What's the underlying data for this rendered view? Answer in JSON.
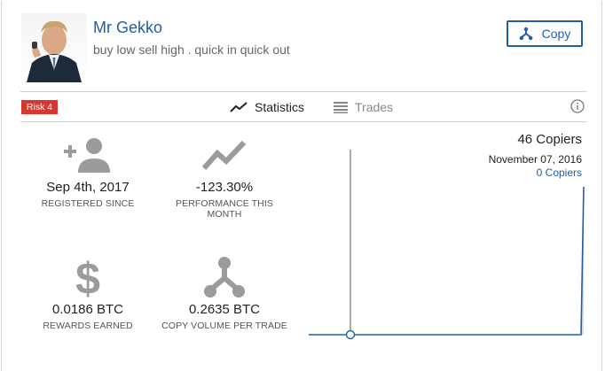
{
  "trader": {
    "name": "Mr Gekko",
    "motto": "buy low sell high . quick in quick out"
  },
  "header": {
    "copy_label": "Copy"
  },
  "risk": {
    "label": "Risk 4",
    "color": "#d9362f"
  },
  "tabs": [
    {
      "label": "Statistics",
      "icon": "line-chart-icon",
      "active": true
    },
    {
      "label": "Trades",
      "icon": "list-icon",
      "active": false
    }
  ],
  "stats": [
    {
      "value": "Sep 4th, 2017",
      "label": "REGISTERED SINCE",
      "icon": "add-person-icon"
    },
    {
      "value": "-123.30%",
      "label": "PERFORMANCE THIS MONTH",
      "icon": "trend-icon"
    },
    {
      "value": "0.0186 BTC",
      "label": "REWARDS EARNED",
      "icon": "dollar-icon"
    },
    {
      "value": "0.2635 BTC",
      "label": "COPY VOLUME PER TRADE",
      "icon": "copy-fork-icon"
    }
  ],
  "chart_data": {
    "type": "area",
    "title": "46 Copiers",
    "hover": {
      "date": "November 07, 2016",
      "copiers": "0 Copiers"
    },
    "series": [
      {
        "values": [
          0,
          0,
          0,
          0,
          0,
          0,
          0,
          0,
          0,
          0,
          0,
          46
        ]
      }
    ],
    "ylim": [
      0,
      46
    ],
    "grid": false,
    "colors": {
      "line": "#1f5fa8",
      "fill": "#cfe0f3"
    }
  },
  "colors": {
    "accent": "#1f5fa8",
    "icon_gray": "#9b9b9b"
  }
}
